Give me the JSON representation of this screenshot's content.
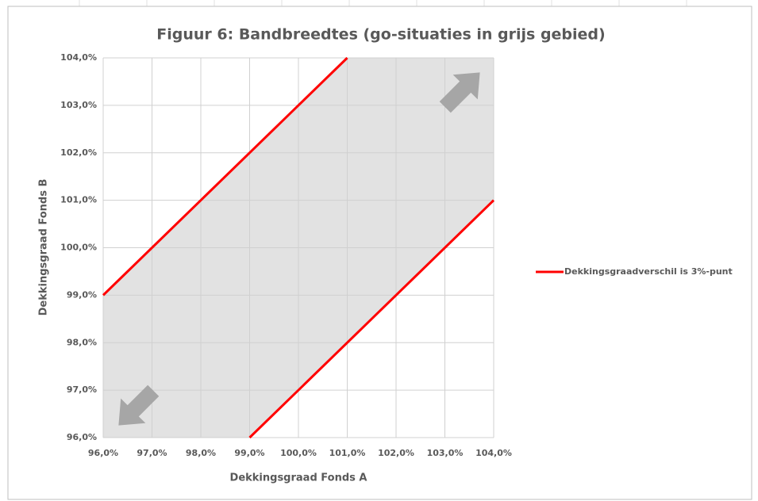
{
  "chart_data": {
    "type": "line",
    "title": "Figuur 6: Bandbreedtes (go-situaties in grijs gebied)",
    "x_label": "Dekkingsgraad Fonds A",
    "y_label": "Dekkingsgraad Fonds B",
    "series": [
      {
        "name": "Dekkingsgraadverschil is 3%-punt",
        "color": "#ff0000",
        "x": [
          96,
          101,
          null,
          99,
          104
        ],
        "values": [
          99,
          104,
          null,
          96,
          101
        ]
      }
    ],
    "xlim": [
      96,
      104
    ],
    "ylim": [
      96,
      104
    ],
    "xticks": [
      {
        "value": 96,
        "label": "96,0%"
      },
      {
        "value": 97,
        "label": "97,0%"
      },
      {
        "value": 98,
        "label": "98,0%"
      },
      {
        "value": 99,
        "label": "99,0%"
      },
      {
        "value": 100,
        "label": "100,0%"
      },
      {
        "value": 101,
        "label": "101,0%"
      },
      {
        "value": 102,
        "label": "102,0%"
      },
      {
        "value": 103,
        "label": "103,0%"
      },
      {
        "value": 104,
        "label": "104,0%"
      }
    ],
    "yticks": [
      {
        "value": 96,
        "label": "96,0%"
      },
      {
        "value": 97,
        "label": "97,0%"
      },
      {
        "value": 98,
        "label": "98,0%"
      },
      {
        "value": 99,
        "label": "99,0%"
      },
      {
        "value": 100,
        "label": "100,0%"
      },
      {
        "value": 101,
        "label": "101,0%"
      },
      {
        "value": 102,
        "label": "102,0%"
      },
      {
        "value": 103,
        "label": "103,0%"
      },
      {
        "value": 104,
        "label": "104,0%"
      }
    ],
    "grid": true,
    "legend": "right"
  }
}
